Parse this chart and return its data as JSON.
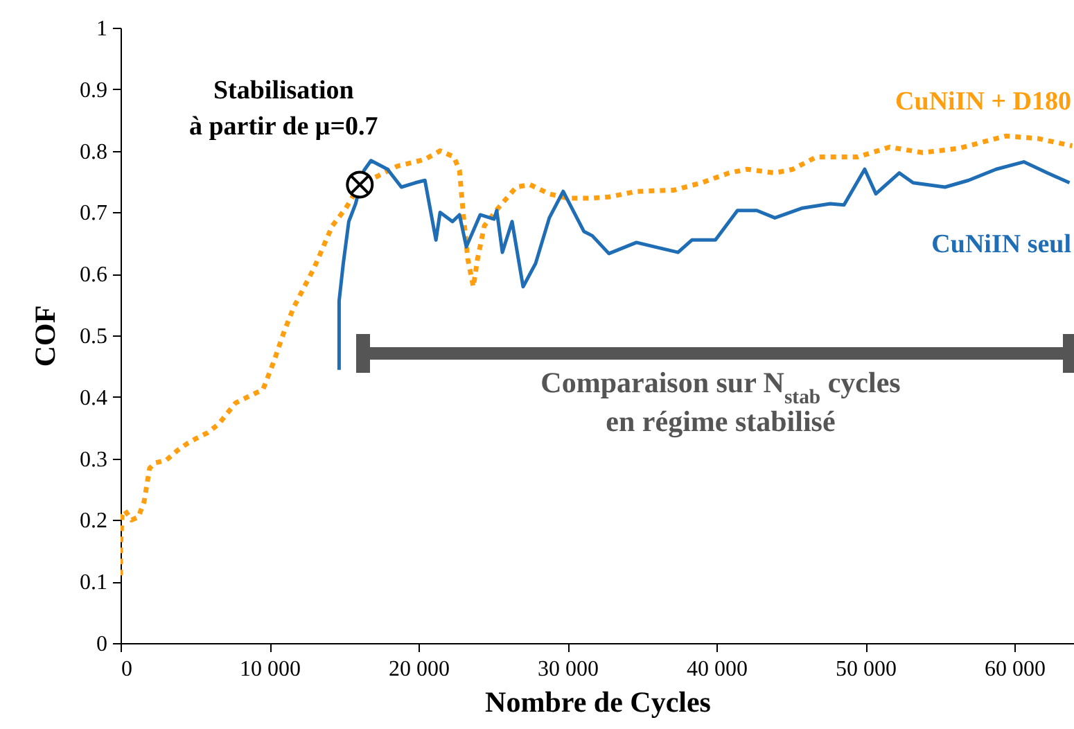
{
  "chart_data": {
    "type": "line",
    "xlabel": "Nombre de Cycles",
    "ylabel": "COF",
    "xlim": [
      0,
      64000
    ],
    "ylim": [
      0,
      1
    ],
    "xticks": [
      0,
      {
        "value": 10000,
        "label": "10 000"
      },
      {
        "value": 20000,
        "label": "20 000"
      },
      {
        "value": 30000,
        "label": "30 000"
      },
      {
        "value": 40000,
        "label": "40 000"
      },
      {
        "value": 50000,
        "label": "50 000"
      },
      {
        "value": 60000,
        "label": "60 000"
      }
    ],
    "yticks": [
      0,
      0.1,
      0.2,
      0.3,
      0.4,
      0.5,
      0.6,
      0.7,
      0.8,
      0.9,
      1
    ],
    "grid": false,
    "series": [
      {
        "name": "CuNiIN + D180",
        "color": "#ff9f0f",
        "line_style": "dotted",
        "x": [
          0,
          0,
          100,
          280,
          740,
          1200,
          1580,
          1950,
          2320,
          3060,
          3810,
          4460,
          5110,
          5850,
          6590,
          7710,
          8450,
          9560,
          10310,
          10960,
          11610,
          13000,
          14210,
          15130,
          16060,
          17270,
          18570,
          20430,
          21450,
          22380,
          22750,
          23030,
          23310,
          23680,
          23960,
          24420,
          25350,
          26560,
          27480,
          28780,
          29990,
          31570,
          32780,
          34630,
          37140,
          39000,
          40850,
          42060,
          43920,
          45130,
          46700,
          49490,
          51620,
          53850,
          56270,
          59420,
          61560,
          63880
        ],
        "values": [
          0.11,
          0.155,
          0.207,
          0.216,
          0.2,
          0.205,
          0.23,
          0.284,
          0.293,
          0.297,
          0.313,
          0.324,
          0.333,
          0.342,
          0.356,
          0.39,
          0.399,
          0.412,
          0.459,
          0.505,
          0.545,
          0.61,
          0.678,
          0.707,
          0.745,
          0.759,
          0.775,
          0.786,
          0.8,
          0.79,
          0.768,
          0.691,
          0.624,
          0.579,
          0.624,
          0.678,
          0.707,
          0.741,
          0.745,
          0.73,
          0.723,
          0.723,
          0.725,
          0.734,
          0.736,
          0.748,
          0.764,
          0.77,
          0.764,
          0.77,
          0.79,
          0.79,
          0.806,
          0.797,
          0.804,
          0.824,
          0.82,
          0.808
        ]
      },
      {
        "name": "CuNiIN seul",
        "color": "#1f6db5",
        "line_style": "solid",
        "x": [
          14670,
          14670,
          14950,
          15320,
          15780,
          16340,
          16810,
          17920,
          18850,
          19780,
          20430,
          21170,
          21450,
          22280,
          22750,
          23210,
          24140,
          25070,
          25250,
          25630,
          26280,
          27020,
          27860,
          28780,
          29710,
          31100,
          31660,
          32780,
          34630,
          35840,
          37420,
          38350,
          39930,
          41410,
          42710,
          43920,
          45780,
          47630,
          48560,
          49950,
          50700,
          52270,
          53200,
          55340,
          56920,
          58770,
          60630,
          62210,
          63700
        ],
        "values": [
          0.444,
          0.556,
          0.617,
          0.685,
          0.714,
          0.768,
          0.784,
          0.77,
          0.741,
          0.748,
          0.752,
          0.655,
          0.7,
          0.685,
          0.696,
          0.644,
          0.696,
          0.689,
          0.703,
          0.635,
          0.685,
          0.579,
          0.617,
          0.691,
          0.734,
          0.669,
          0.662,
          0.633,
          0.651,
          0.644,
          0.635,
          0.655,
          0.655,
          0.703,
          0.703,
          0.691,
          0.707,
          0.714,
          0.712,
          0.77,
          0.73,
          0.764,
          0.748,
          0.741,
          0.752,
          0.77,
          0.782,
          0.764,
          0.748
        ]
      }
    ],
    "annotations": [
      {
        "text": "Stabilisation\nà partir de μ=0.7",
        "x": 16060,
        "y": 0.745
      },
      "Comparaison sur N$_{stab}$ cycles\nen régime stabilisé"
    ]
  }
}
